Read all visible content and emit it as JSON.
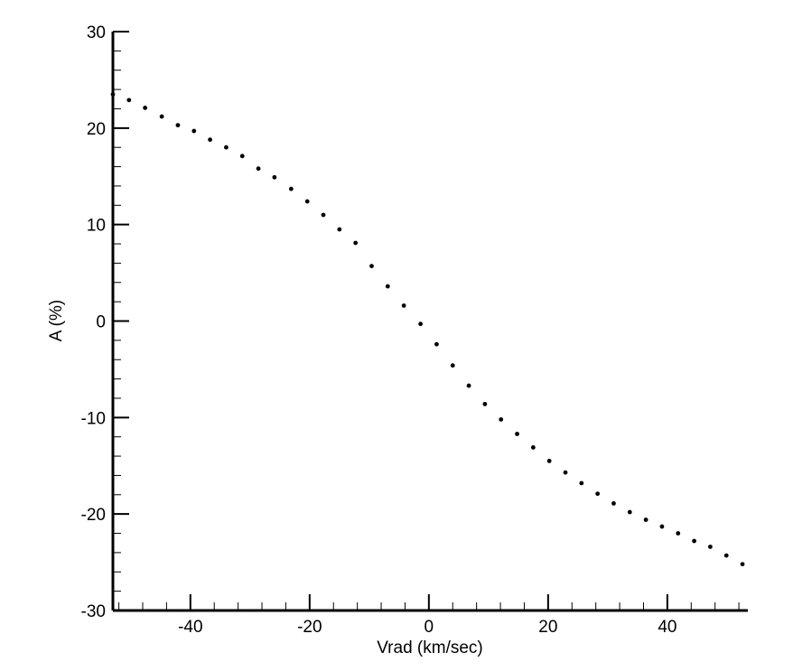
{
  "chart_data": {
    "type": "scatter",
    "title": "",
    "xlabel": "Vrad (km/sec)",
    "ylabel": "A (%)",
    "xlim": [
      -53,
      53.5
    ],
    "ylim": [
      -30,
      30
    ],
    "x_ticks": [
      -40,
      -20,
      0,
      20,
      40
    ],
    "x_tick_labels": [
      "-40",
      "-20",
      "0",
      "20",
      "40"
    ],
    "y_ticks": [
      -30,
      -20,
      -10,
      0,
      10,
      20,
      30
    ],
    "y_tick_labels": [
      "-30",
      "-20",
      "-10",
      "0",
      "10",
      "20",
      "30"
    ],
    "grid": false,
    "legend": "none",
    "marker_color": "#000000",
    "series": [
      {
        "x": [
          -53.0,
          -50.3,
          -47.6,
          -44.8,
          -42.1,
          -39.4,
          -36.7,
          -34.0,
          -31.3,
          -28.6,
          -25.9,
          -23.1,
          -20.4,
          -17.7,
          -15.0,
          -12.3,
          -9.6,
          -6.9,
          -4.2,
          -1.4,
          1.3,
          4.0,
          6.7,
          9.4,
          12.1,
          14.8,
          17.5,
          20.2,
          22.9,
          25.6,
          28.3,
          31.0,
          33.7,
          36.4,
          39.1,
          41.8,
          44.5,
          47.2,
          49.9,
          52.6
        ],
        "y": [
          23.5,
          22.9,
          22.1,
          21.2,
          20.3,
          19.7,
          18.8,
          18.0,
          17.1,
          15.8,
          14.9,
          13.7,
          12.4,
          11.0,
          9.5,
          8.1,
          5.7,
          3.6,
          1.6,
          -0.3,
          -2.4,
          -4.6,
          -6.7,
          -8.6,
          -10.2,
          -11.7,
          -13.1,
          -14.5,
          -15.7,
          -16.8,
          -17.9,
          -18.9,
          -19.8,
          -20.6,
          -21.3,
          -22.0,
          -22.8,
          -23.4,
          -24.3,
          -25.2
        ]
      }
    ]
  }
}
